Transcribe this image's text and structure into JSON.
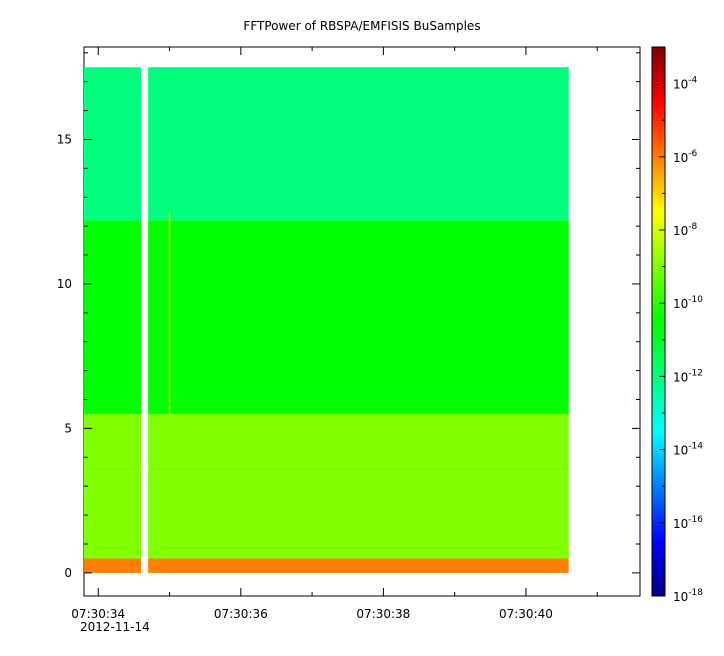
{
  "chart_data": {
    "type": "heatmap",
    "title": "FFTPower of RBSPA/EMFISIS  BuSamples",
    "xlabel": "",
    "ylabel": "",
    "x_tick_labels": [
      "07:30:34",
      "07:30:36",
      "07:30:38",
      "07:30:40"
    ],
    "x_date_label": "2012-11-14",
    "x_range": [
      "07:30:33.8",
      "07:30:41.6"
    ],
    "y_ticks": [
      0,
      5,
      10,
      15
    ],
    "ylim": [
      -0.8,
      18.2
    ],
    "colorbar": {
      "scale": "log",
      "range": [
        1e-18,
        0.001
      ],
      "tick_base": "10",
      "tick_exponents": [
        "-4",
        "-6",
        "-8",
        "-10",
        "-12",
        "-14",
        "-16",
        "-18"
      ],
      "colormap": [
        "#00007f",
        "#0000ff",
        "#007fff",
        "#00ffff",
        "#00ff7f",
        "#00ff00",
        "#7fff00",
        "#ffff00",
        "#ff7f00",
        "#ff0000",
        "#7f0000"
      ]
    },
    "data_extent": {
      "x": [
        "07:30:33.8",
        "07:30:40.6"
      ],
      "y": [
        0,
        17.5
      ]
    },
    "data_gap": {
      "x": [
        "07:30:34.6",
        "07:30:34.7"
      ]
    },
    "features": [
      {
        "kind": "band",
        "y": [
          0,
          0.5
        ],
        "log10_power": -5.8
      },
      {
        "kind": "band",
        "y": [
          0.5,
          3.5
        ],
        "log10_power": -8.3
      },
      {
        "kind": "band",
        "y": [
          3.5,
          5.5
        ],
        "log10_power": -9.6
      },
      {
        "kind": "band",
        "y": [
          5.5,
          12.2
        ],
        "log10_power": -10.8
      },
      {
        "kind": "band",
        "y": [
          12.2,
          17.5
        ],
        "log10_power": -12.4
      },
      {
        "kind": "line",
        "x": "07:30:35.0",
        "y": [
          5.5,
          12.5
        ],
        "log10_power": -9.3
      }
    ]
  }
}
